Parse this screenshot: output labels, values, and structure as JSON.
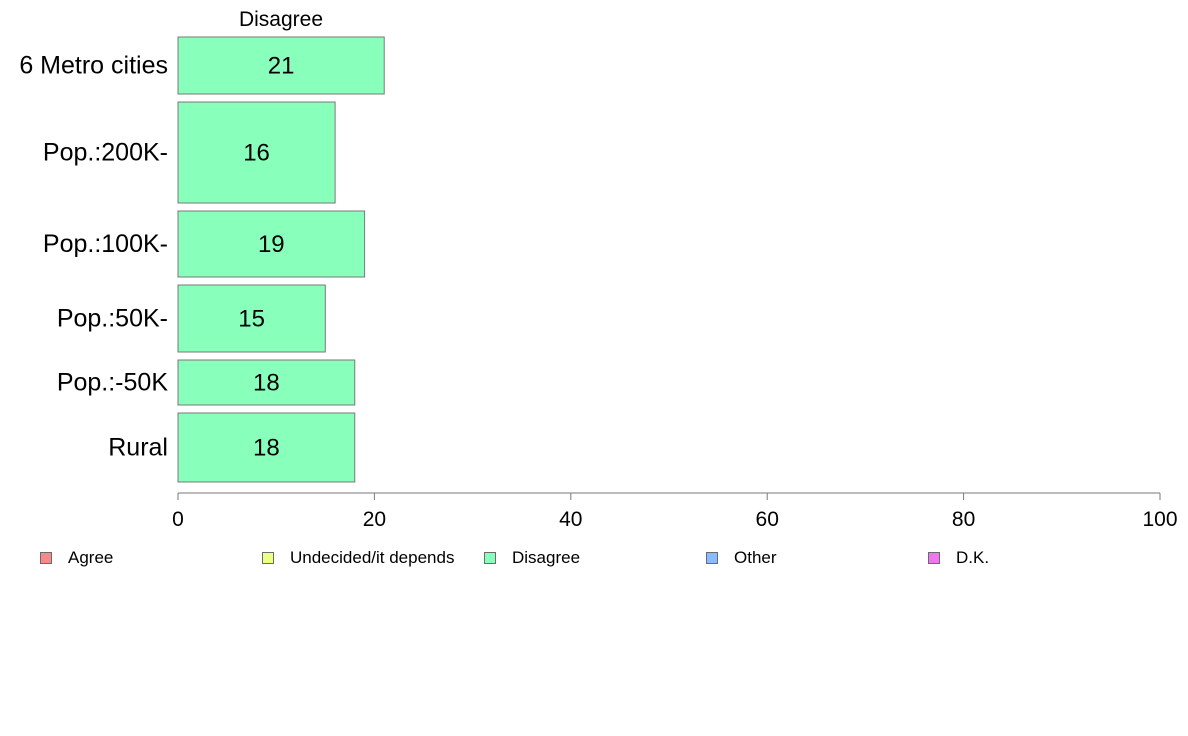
{
  "chart_data": {
    "type": "bar",
    "orientation": "horizontal",
    "title": "Disagree",
    "categories": [
      "6 Metro cities",
      "Pop.:200K-",
      "Pop.:100K-",
      "Pop.:50K-",
      "Pop.:-50K",
      "Rural"
    ],
    "series": [
      {
        "name": "Disagree",
        "color": "#88ffbb",
        "values": [
          21,
          16,
          19,
          15,
          18,
          18
        ]
      }
    ],
    "xlim": [
      0,
      100
    ],
    "xticks": [
      "0",
      "20",
      "40",
      "60",
      "80",
      "100"
    ],
    "grid": false,
    "legend_position": "bottom"
  },
  "legend": [
    {
      "label": "Agree",
      "color": "#f28b8b"
    },
    {
      "label": "Undecided/it depends",
      "color": "#eeff88"
    },
    {
      "label": "Disagree",
      "color": "#88ffbb"
    },
    {
      "label": "Other",
      "color": "#88bbff"
    },
    {
      "label": "D.K.",
      "color": "#ee77ee"
    }
  ]
}
